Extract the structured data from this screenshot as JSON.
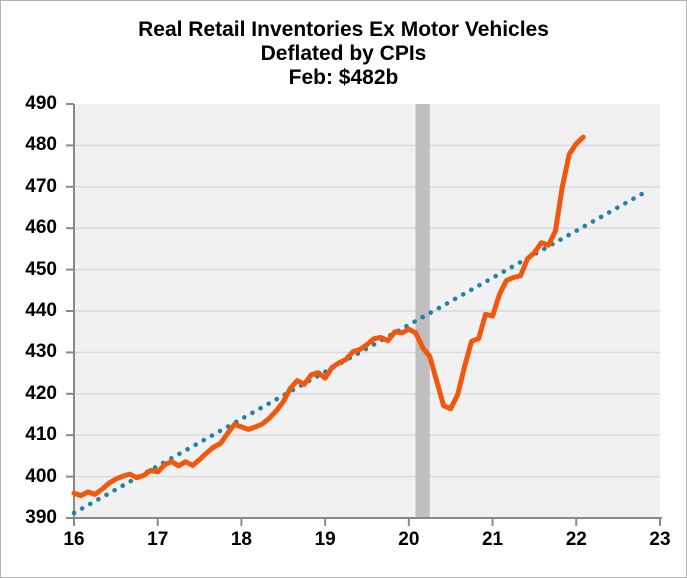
{
  "chart_data": {
    "type": "line",
    "title_lines": [
      "Real Retail Inventories Ex Motor Vehicles",
      "Deflated by CPIs",
      "Feb: $482b"
    ],
    "x_start": 16,
    "x_step": 0.0833333,
    "x_start_label": "Jan 2016",
    "x_end_label": "Feb 2022",
    "series": [
      {
        "name": "real-retail-inventories-ex-motor-vehicles",
        "color": "#f1580e",
        "style": "solid",
        "stroke_width": 5,
        "values": [
          396.0,
          395.4,
          396.3,
          395.7,
          396.9,
          398.4,
          399.4,
          400.1,
          400.6,
          399.7,
          400.3,
          401.5,
          401.1,
          402.9,
          403.6,
          402.6,
          403.6,
          402.7,
          404.1,
          405.7,
          407.1,
          408.0,
          410.4,
          412.6,
          412.0,
          411.4,
          412.0,
          412.7,
          414.1,
          415.9,
          418.1,
          421.3,
          423.2,
          422.3,
          424.6,
          425.1,
          423.8,
          426.4,
          427.5,
          428.3,
          430.2,
          430.7,
          431.9,
          433.3,
          433.6,
          432.8,
          435.0,
          434.7,
          435.6,
          434.7,
          431.1,
          429.0,
          423.0,
          417.1,
          416.4,
          419.8,
          426.7,
          432.7,
          433.3,
          439.2,
          438.8,
          444.0,
          447.4,
          448.1,
          448.5,
          452.6,
          454.1,
          456.5,
          455.9,
          459.3,
          470.0,
          477.9,
          480.4,
          482.0
        ],
        "last_point_note": "Feb 2022 = 482"
      },
      {
        "name": "linear-trend",
        "color": "#2481aa",
        "style": "dotted",
        "stroke_width": 4.6,
        "x": [
          16.0,
          22.83
        ],
        "values": [
          391.2,
          468.8
        ]
      }
    ],
    "recession_band": {
      "x_start": 20.08,
      "x_end": 20.25,
      "color": "#bfbfbf"
    },
    "xlim": [
      16,
      23
    ],
    "ylim": [
      390,
      490
    ],
    "x_ticks": [
      "16",
      "17",
      "18",
      "19",
      "20",
      "21",
      "22",
      "23"
    ],
    "x_tick_values": [
      16,
      17,
      18,
      19,
      20,
      21,
      22,
      23
    ],
    "y_ticks": [
      "390",
      "400",
      "410",
      "420",
      "430",
      "440",
      "450",
      "460",
      "470",
      "480",
      "490"
    ],
    "y_tick_values": [
      390,
      400,
      410,
      420,
      430,
      440,
      450,
      460,
      470,
      480,
      490
    ],
    "grid": "horizontal",
    "legend": "none",
    "colors": {
      "plot_background": "#f1f1f1",
      "gridline": "#d9d9d9",
      "axis": "#898989",
      "tick_label": "#000000",
      "title": "#000000"
    }
  }
}
